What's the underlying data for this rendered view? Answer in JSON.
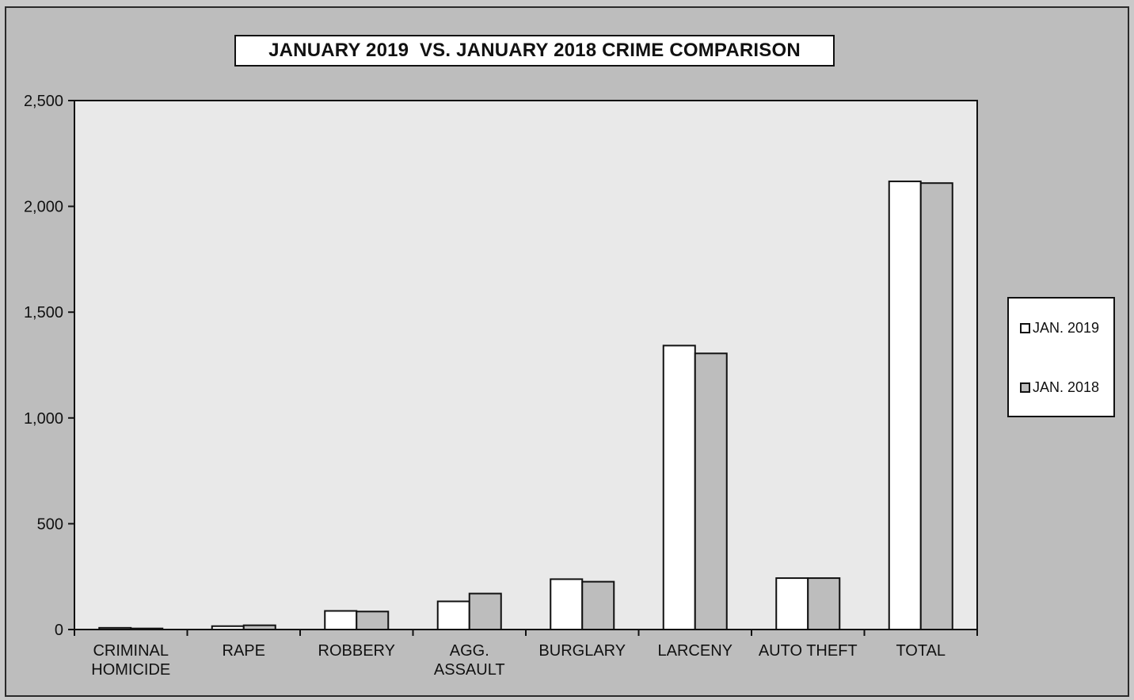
{
  "chart_data": {
    "type": "bar",
    "title": "JANUARY 2019  VS. JANUARY 2018 CRIME COMPARISON",
    "categories": [
      [
        "CRIMINAL",
        "HOMICIDE"
      ],
      [
        "RAPE"
      ],
      [
        "ROBBERY"
      ],
      [
        "AGG.",
        "ASSAULT"
      ],
      [
        "BURGLARY"
      ],
      [
        "LARCENY"
      ],
      [
        "AUTO THEFT"
      ],
      [
        "TOTAL"
      ]
    ],
    "series": [
      {
        "name": "JAN. 2019",
        "color": "#ffffff",
        "values": [
          8,
          16,
          88,
          133,
          238,
          1342,
          243,
          2118
        ]
      },
      {
        "name": "JAN. 2018",
        "color": "#bdbdbd",
        "values": [
          5,
          20,
          85,
          170,
          226,
          1305,
          243,
          2110
        ]
      }
    ],
    "ylim": [
      0,
      2500
    ],
    "yticks": [
      0,
      500,
      1000,
      1500,
      2000,
      2500
    ],
    "ytick_labels": [
      "0",
      "500",
      "1,000",
      "1,500",
      "2,000",
      "2,500"
    ],
    "xlabel": "",
    "ylabel": "",
    "grid": false,
    "legend_position": "right"
  },
  "colors": {
    "plot_background": "#e9e9e9",
    "frame_background": "#bdbdbd",
    "axis": "#111111"
  }
}
